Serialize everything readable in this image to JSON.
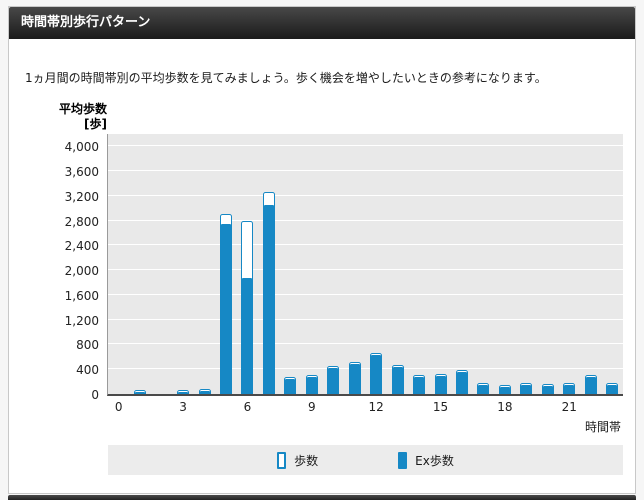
{
  "header": {
    "title": "時間帯別歩行パターン"
  },
  "description": "1ヵ月間の時間帯別の平均歩数を見てみましょう。歩く機会を増やしたいときの参考になります。",
  "chart_data": {
    "type": "bar",
    "title": "時間帯別歩行パターン",
    "ylabel_line1": "平均歩数",
    "ylabel_line2": "[歩]",
    "xlabel": "時間帯",
    "ylim": [
      0,
      4200
    ],
    "grid": true,
    "legend_position": "bottom",
    "yticks": [
      {
        "value": 0,
        "label": "0"
      },
      {
        "value": 400,
        "label": "400"
      },
      {
        "value": 800,
        "label": "800"
      },
      {
        "value": 1200,
        "label": "1,200"
      },
      {
        "value": 1600,
        "label": "1,600"
      },
      {
        "value": 2000,
        "label": "2,000"
      },
      {
        "value": 2400,
        "label": "2,400"
      },
      {
        "value": 2800,
        "label": "2,800"
      },
      {
        "value": 3200,
        "label": "3,200"
      },
      {
        "value": 3600,
        "label": "3,600"
      },
      {
        "value": 4000,
        "label": "4,000"
      }
    ],
    "x": [
      0,
      1,
      2,
      3,
      4,
      5,
      6,
      7,
      8,
      9,
      10,
      11,
      12,
      13,
      14,
      15,
      16,
      17,
      18,
      19,
      20,
      21,
      22,
      23
    ],
    "xtick_hours": [
      0,
      3,
      6,
      9,
      12,
      15,
      18,
      21
    ],
    "series": [
      {
        "name": "歩数",
        "style": "outline",
        "values": [
          0,
          60,
          0,
          60,
          80,
          2900,
          2800,
          3270,
          270,
          300,
          450,
          520,
          660,
          470,
          300,
          330,
          380,
          170,
          150,
          180,
          160,
          170,
          300,
          180
        ]
      },
      {
        "name": "Ex歩数",
        "style": "solid",
        "values": [
          0,
          60,
          0,
          60,
          80,
          2780,
          1900,
          3080,
          270,
          300,
          450,
          520,
          660,
          470,
          300,
          330,
          380,
          170,
          150,
          180,
          160,
          170,
          300,
          180
        ]
      }
    ],
    "colors": {
      "bar": "#1688c5",
      "plot_bg": "#e9e9e9",
      "grid": "#ffffff",
      "legend_bg": "#ececec"
    }
  },
  "legend": {
    "items": [
      {
        "label": "歩数"
      },
      {
        "label": "Ex歩数"
      }
    ]
  }
}
